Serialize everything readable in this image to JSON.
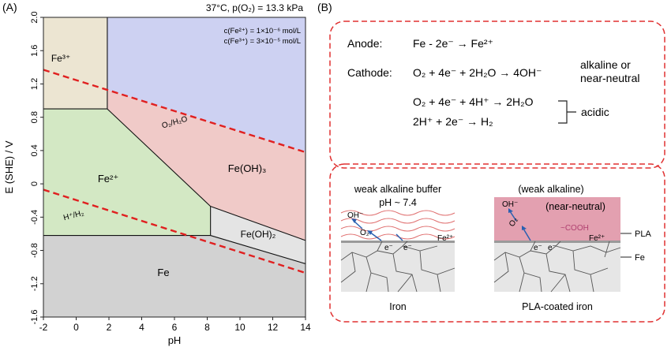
{
  "panel_a": {
    "label": "(A)",
    "conditions": "37°C, p(O₂) = 13.3 kPa",
    "conc_fe2": "c(Fe²⁺) = 1×10⁻⁶ mol/L",
    "conc_fe3": "c(Fe³⁺) = 3×10⁻⁵ mol/L",
    "xlabel": "pH",
    "ylabel": "E (SHE) / V",
    "region_labels": {
      "fe3": "Fe³⁺",
      "fe2": "Fe²⁺",
      "feoh3": "Fe(OH)₃",
      "feoh2": "Fe(OH)₂",
      "fe": "Fe",
      "o2h2o": "O₂/H₂O",
      "hh2": "H⁺/H₂"
    },
    "colors": {
      "fe3": "#ece5d2",
      "passive_blue": "#cdd1f2",
      "feoh3": "#f0cac8",
      "fe2": "#d3e8c4",
      "feoh2": "#e4e4e4",
      "fe": "#d2d2d2",
      "dashed": "#e02020"
    }
  },
  "chart_data": {
    "type": "line",
    "xlabel": "pH",
    "ylabel": "E (SHE) / V",
    "xlim": [
      -2,
      14
    ],
    "ylim": [
      -1.6,
      2.0
    ],
    "xticks": [
      -2,
      0,
      2,
      4,
      6,
      8,
      10,
      12,
      14
    ],
    "yticks": [
      2.0,
      1.6,
      1.2,
      0.8,
      0.4,
      0,
      -0.4,
      -0.8,
      -1.2,
      -1.6
    ],
    "yticks_labeled": [
      "2.0",
      "1.6",
      "1.2",
      "0.8",
      "0.4",
      "0",
      "-0.4",
      "-0.8",
      "-1.2",
      "-1.6"
    ],
    "regions": [
      {
        "id": "fe3",
        "polygon": [
          [
            -2,
            2.0
          ],
          [
            1.9,
            2.0
          ],
          [
            1.9,
            0.9
          ],
          [
            -2,
            0.9
          ]
        ]
      },
      {
        "id": "passive_blue",
        "polygon": [
          [
            1.9,
            2.0
          ],
          [
            14,
            2.0
          ],
          [
            14,
            0.38
          ],
          [
            1.9,
            1.13
          ]
        ]
      },
      {
        "id": "feoh3",
        "polygon": [
          [
            1.9,
            1.13
          ],
          [
            14,
            0.38
          ],
          [
            14,
            -0.68
          ],
          [
            8.2,
            -0.27
          ],
          [
            1.9,
            0.9
          ]
        ]
      },
      {
        "id": "fe2",
        "polygon": [
          [
            -2,
            0.9
          ],
          [
            1.9,
            0.9
          ],
          [
            8.2,
            -0.27
          ],
          [
            8.2,
            -0.62
          ],
          [
            -2,
            -0.62
          ]
        ]
      },
      {
        "id": "feoh2",
        "polygon": [
          [
            8.2,
            -0.27
          ],
          [
            14,
            -0.68
          ],
          [
            14,
            -0.96
          ],
          [
            8.2,
            -0.62
          ]
        ]
      },
      {
        "id": "fe",
        "polygon": [
          [
            -2,
            -0.62
          ],
          [
            8.2,
            -0.62
          ],
          [
            14,
            -0.96
          ],
          [
            14,
            -1.6
          ],
          [
            -2,
            -1.6
          ]
        ]
      }
    ],
    "boundaries": [
      {
        "points": [
          [
            1.9,
            2.0
          ],
          [
            1.9,
            0.9
          ]
        ]
      },
      {
        "points": [
          [
            -2,
            0.9
          ],
          [
            1.9,
            0.9
          ]
        ]
      },
      {
        "points": [
          [
            1.9,
            0.9
          ],
          [
            8.2,
            -0.27
          ]
        ]
      },
      {
        "points": [
          [
            8.2,
            -0.27
          ],
          [
            8.2,
            -0.62
          ]
        ]
      },
      {
        "points": [
          [
            8.2,
            -0.27
          ],
          [
            14,
            -0.68
          ]
        ]
      },
      {
        "points": [
          [
            -2,
            -0.62
          ],
          [
            8.2,
            -0.62
          ]
        ]
      },
      {
        "points": [
          [
            8.2,
            -0.62
          ],
          [
            14,
            -0.96
          ]
        ]
      }
    ],
    "series": [
      {
        "name": "O₂/H₂O",
        "style": "dashed",
        "x": [
          -2,
          14
        ],
        "y": [
          1.37,
          0.38
        ]
      },
      {
        "name": "H⁺/H₂",
        "style": "dashed",
        "x": [
          -2,
          14
        ],
        "y": [
          -0.07,
          -1.07
        ]
      }
    ]
  },
  "panel_b": {
    "label": "(B)",
    "anode_label": "Anode:",
    "anode_eq": "Fe - 2e⁻ → Fe²⁺",
    "cathode_label": "Cathode:",
    "cathode_eq1": "O₂ + 4e⁻ + 2H₂O → 4OH⁻",
    "cond_alkaline_1": "alkaline or",
    "cond_alkaline_2": "near-neutral",
    "cathode_eq2": "O₂ + 4e⁻ + 4H⁺ → 2H₂O",
    "cathode_eq3": "2H⁺ + 2e⁻ → H₂",
    "cond_acidic": "acidic",
    "left_title_1": "weak alkaline buffer",
    "left_title_2": "pH ~ 7.4",
    "right_title": "(weak alkaline)",
    "right_subtitle": "(near-neutral)",
    "oh_label": "OH⁻",
    "o2_label": "O₂",
    "e_label": "e⁻",
    "fe2_label": "Fe²⁺",
    "cooh_label": "~COOH",
    "pla_label": "PLA",
    "fe_label": "Fe",
    "left_caption": "Iron",
    "right_caption": "PLA-coated iron",
    "colors": {
      "box_dashed": "#e03030",
      "pla": "#e3a0b0",
      "metal": "#e6e6e6",
      "metal_top": "#9a9a9a",
      "arrow": "#2a60b0",
      "wave": "#e06060"
    }
  }
}
